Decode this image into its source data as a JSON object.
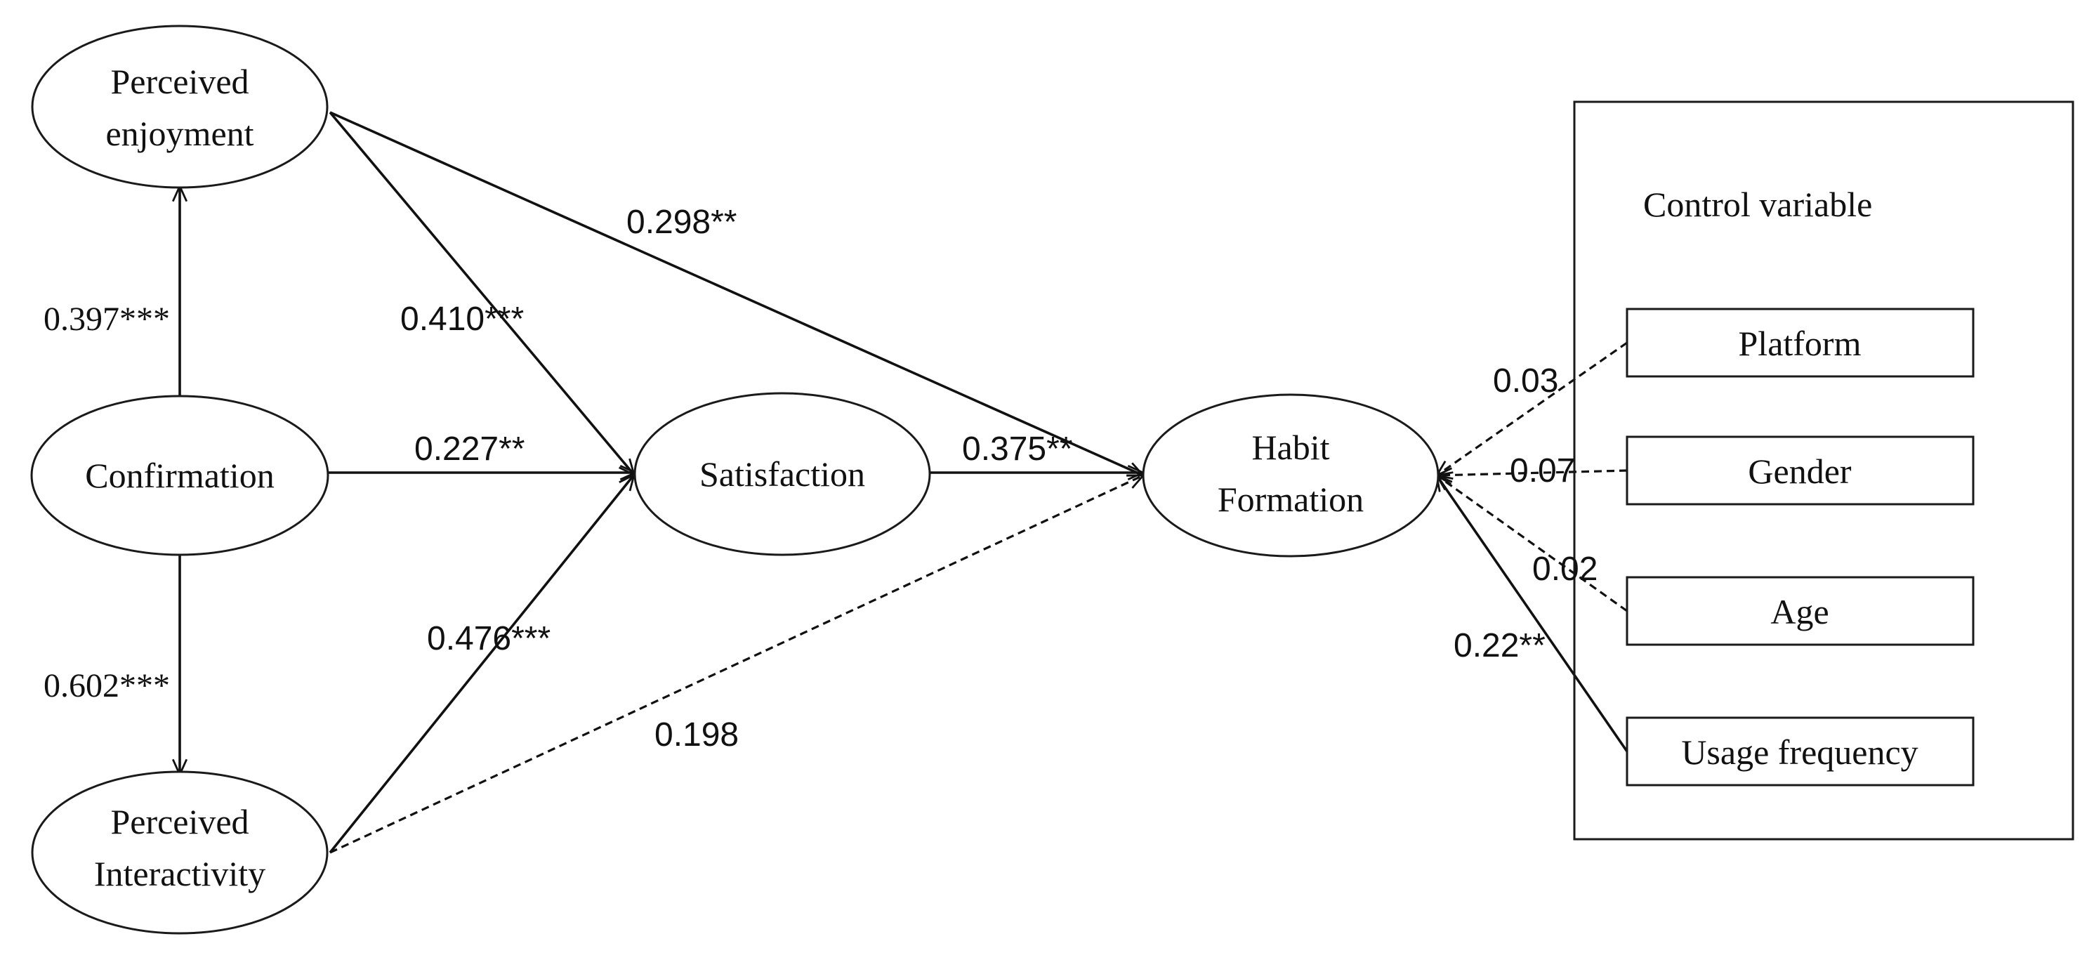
{
  "nodes": {
    "perceived_enjoyment": {
      "lines": [
        "Perceived",
        "enjoyment"
      ]
    },
    "confirmation": {
      "lines": [
        "Confirmation"
      ]
    },
    "perceived_interactivity": {
      "lines": [
        "Perceived",
        "Interactivity"
      ]
    },
    "satisfaction": {
      "lines": [
        "Satisfaction"
      ]
    },
    "habit_formation": {
      "lines": [
        "Habit",
        "Formation"
      ]
    }
  },
  "control_group": {
    "title": "Control variable",
    "items": {
      "platform": "Platform",
      "gender": "Gender",
      "age": "Age",
      "usage_frequency": "Usage frequency"
    }
  },
  "paths": [
    {
      "from": "Confirmation",
      "to": "Perceived enjoyment",
      "coefficient": "0.397***",
      "line": "solid"
    },
    {
      "from": "Confirmation",
      "to": "Perceived Interactivity",
      "coefficient": "0.602***",
      "line": "solid"
    },
    {
      "from": "Confirmation",
      "to": "Satisfaction",
      "coefficient": "0.227**",
      "line": "solid"
    },
    {
      "from": "Perceived enjoyment",
      "to": "Satisfaction",
      "coefficient": "0.410***",
      "line": "solid"
    },
    {
      "from": "Perceived Interactivity",
      "to": "Satisfaction",
      "coefficient": "0.476***",
      "line": "solid"
    },
    {
      "from": "Perceived enjoyment",
      "to": "Habit Formation",
      "coefficient": "0.298**",
      "line": "solid"
    },
    {
      "from": "Satisfaction",
      "to": "Habit Formation",
      "coefficient": "0.375**",
      "line": "solid"
    },
    {
      "from": "Perceived Interactivity",
      "to": "Habit Formation",
      "coefficient": "0.198",
      "line": "dashed"
    },
    {
      "from": "Platform",
      "to": "Habit Formation",
      "coefficient": "0.03",
      "line": "dashed"
    },
    {
      "from": "Gender",
      "to": "Habit Formation",
      "coefficient": "0.07",
      "line": "dashed"
    },
    {
      "from": "Age",
      "to": "Habit Formation",
      "coefficient": "0.02",
      "line": "dashed"
    },
    {
      "from": "Usage frequency",
      "to": "Habit Formation",
      "coefficient": "0.22**",
      "line": "solid"
    }
  ]
}
